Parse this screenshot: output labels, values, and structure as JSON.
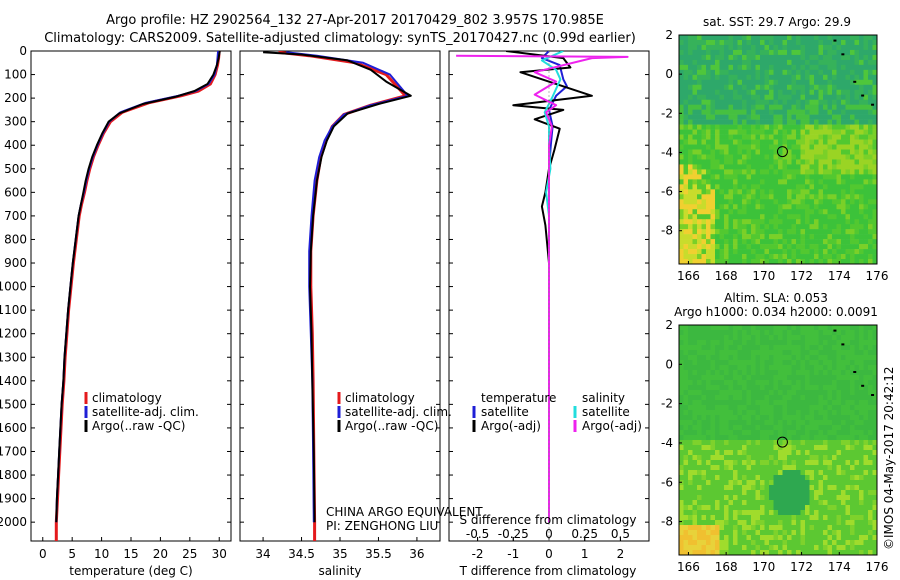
{
  "header": {
    "line1": "Argo profile: HZ 2902564_132 27-Apr-2017 20170429_802 3.957S 170.985E",
    "line2": "Climatology: CARS2009. Satellite-adjusted climatology: synTS_20170427.nc (0.99d earlier)"
  },
  "colors": {
    "climatology": "#e41a1c",
    "satellite": "#1f1fd6",
    "argo": "#000000",
    "sal_satellite": "#22dddd",
    "sal_argo": "#ee22ee"
  },
  "credit": "©IMOS 04-May-2017 20:42:12",
  "chart_data": [
    {
      "id": "temperature",
      "type": "line",
      "xlabel": "temperature (deg C)",
      "ylabel": "",
      "xlim": [
        -2,
        32
      ],
      "ylim": [
        2080,
        0
      ],
      "x_ticks": [
        "0",
        "5",
        "10",
        "15",
        "20",
        "25",
        "30"
      ],
      "y_ticks": [
        "0",
        "100",
        "200",
        "300",
        "400",
        "500",
        "600",
        "700",
        "800",
        "900",
        "1000",
        "1100",
        "1200",
        "1300",
        "1400",
        "1500",
        "1600",
        "1700",
        "1800",
        "1900",
        "2000"
      ],
      "legend": [
        "climatology",
        "satellite-adj. clim.",
        "Argo(..raw -QC)"
      ],
      "series": [
        {
          "name": "climatology",
          "color_key": "climatology",
          "points": [
            [
              30,
              0
            ],
            [
              29.9,
              30
            ],
            [
              29.7,
              60
            ],
            [
              29.3,
              100
            ],
            [
              28.5,
              140
            ],
            [
              26.5,
              170
            ],
            [
              23.5,
              190
            ],
            [
              18,
              220
            ],
            [
              13.5,
              260
            ],
            [
              11.5,
              300
            ],
            [
              10.3,
              350
            ],
            [
              9.4,
              400
            ],
            [
              8.6,
              450
            ],
            [
              8,
              500
            ],
            [
              7.5,
              550
            ],
            [
              7.1,
              600
            ],
            [
              6.6,
              650
            ],
            [
              6.2,
              700
            ],
            [
              5.7,
              800
            ],
            [
              5.2,
              900
            ],
            [
              4.8,
              1000
            ],
            [
              4.4,
              1100
            ],
            [
              4.1,
              1200
            ],
            [
              3.8,
              1300
            ],
            [
              3.6,
              1400
            ],
            [
              3.3,
              1500
            ],
            [
              3.1,
              1600
            ],
            [
              2.9,
              1700
            ],
            [
              2.7,
              1800
            ],
            [
              2.5,
              1900
            ],
            [
              2.3,
              2000
            ],
            [
              2.3,
              2080
            ]
          ]
        },
        {
          "name": "satellite-adj. clim.",
          "color_key": "satellite",
          "points": [
            [
              29.8,
              0
            ],
            [
              29.7,
              30
            ],
            [
              29.6,
              60
            ],
            [
              29.2,
              100
            ],
            [
              28.2,
              140
            ],
            [
              26,
              170
            ],
            [
              23,
              190
            ],
            [
              17.5,
              220
            ],
            [
              13.2,
              260
            ],
            [
              11.3,
              300
            ],
            [
              10.2,
              350
            ],
            [
              9.3,
              400
            ],
            [
              8.5,
              450
            ],
            [
              7.9,
              500
            ],
            [
              7.4,
              550
            ],
            [
              7,
              600
            ],
            [
              6.5,
              650
            ],
            [
              6.1,
              700
            ],
            [
              5.6,
              800
            ],
            [
              5.1,
              900
            ],
            [
              4.7,
              1000
            ],
            [
              4.3,
              1100
            ],
            [
              4,
              1200
            ],
            [
              3.7,
              1300
            ],
            [
              3.5,
              1400
            ],
            [
              3.2,
              1500
            ],
            [
              3,
              1600
            ],
            [
              2.8,
              1700
            ],
            [
              2.6,
              1800
            ],
            [
              2.4,
              1900
            ],
            [
              2.3,
              2000
            ]
          ]
        },
        {
          "name": "Argo(..raw -QC)",
          "color_key": "argo",
          "points": [
            [
              30.1,
              0
            ],
            [
              29.9,
              30
            ],
            [
              29.6,
              60
            ],
            [
              29,
              100
            ],
            [
              28,
              140
            ],
            [
              25.8,
              170
            ],
            [
              22.5,
              195
            ],
            [
              17,
              225
            ],
            [
              13,
              265
            ],
            [
              11.2,
              300
            ],
            [
              10.1,
              350
            ],
            [
              9.2,
              400
            ],
            [
              8.4,
              450
            ],
            [
              7.8,
              500
            ],
            [
              7.3,
              550
            ],
            [
              6.9,
              600
            ],
            [
              6.5,
              650
            ],
            [
              6.1,
              700
            ],
            [
              5.6,
              800
            ],
            [
              5.1,
              900
            ],
            [
              4.7,
              1000
            ],
            [
              4.3,
              1100
            ],
            [
              4,
              1200
            ],
            [
              3.7,
              1300
            ],
            [
              3.5,
              1400
            ],
            [
              3.2,
              1500
            ],
            [
              3,
              1600
            ],
            [
              2.8,
              1700
            ],
            [
              2.6,
              1800
            ],
            [
              2.4,
              1900
            ],
            [
              2.3,
              2000
            ]
          ]
        }
      ]
    },
    {
      "id": "salinity",
      "type": "line",
      "xlabel": "salinity",
      "ylabel": "",
      "xlim": [
        33.7,
        36.3
      ],
      "ylim": [
        2080,
        0
      ],
      "x_ticks": [
        "34",
        "34.5",
        "35",
        "35.5",
        "36"
      ],
      "legend": [
        "climatology",
        "satellite-adj. clim.",
        "Argo(..raw -QC)"
      ],
      "annotation": [
        "CHINA ARGO EQUIVALENT",
        "PI: ZENGHONG LIU"
      ],
      "series": [
        {
          "name": "climatology",
          "color_key": "climatology",
          "points": [
            [
              34.2,
              5
            ],
            [
              34.6,
              20
            ],
            [
              35.2,
              50
            ],
            [
              35.6,
              100
            ],
            [
              35.85,
              190
            ],
            [
              35.4,
              230
            ],
            [
              35.05,
              270
            ],
            [
              34.9,
              320
            ],
            [
              34.82,
              380
            ],
            [
              34.75,
              450
            ],
            [
              34.7,
              550
            ],
            [
              34.65,
              700
            ],
            [
              34.62,
              850
            ],
            [
              34.62,
              1000
            ],
            [
              34.64,
              1200
            ],
            [
              34.65,
              1400
            ],
            [
              34.66,
              1700
            ],
            [
              34.67,
              2000
            ],
            [
              34.67,
              2080
            ]
          ]
        },
        {
          "name": "satellite-adj. clim.",
          "color_key": "satellite",
          "points": [
            [
              34.3,
              5
            ],
            [
              34.7,
              20
            ],
            [
              35.3,
              50
            ],
            [
              35.65,
              100
            ],
            [
              35.88,
              190
            ],
            [
              35.4,
              230
            ],
            [
              35.05,
              270
            ],
            [
              34.9,
              320
            ],
            [
              34.8,
              380
            ],
            [
              34.73,
              450
            ],
            [
              34.67,
              550
            ],
            [
              34.63,
              700
            ],
            [
              34.6,
              850
            ],
            [
              34.6,
              1000
            ],
            [
              34.62,
              1200
            ],
            [
              34.64,
              1400
            ],
            [
              34.65,
              1700
            ],
            [
              34.66,
              2000
            ]
          ]
        },
        {
          "name": "Argo(..raw -QC)",
          "color_key": "argo",
          "points": [
            [
              34.0,
              5
            ],
            [
              34.5,
              15
            ],
            [
              35.1,
              40
            ],
            [
              35.4,
              80
            ],
            [
              35.6,
              130
            ],
            [
              35.92,
              190
            ],
            [
              35.5,
              225
            ],
            [
              35.1,
              265
            ],
            [
              34.92,
              320
            ],
            [
              34.83,
              380
            ],
            [
              34.76,
              450
            ],
            [
              34.7,
              550
            ],
            [
              34.65,
              700
            ],
            [
              34.62,
              850
            ],
            [
              34.61,
              1000
            ],
            [
              34.63,
              1200
            ],
            [
              34.64,
              1400
            ],
            [
              34.66,
              1700
            ],
            [
              34.67,
              2000
            ]
          ]
        }
      ]
    },
    {
      "id": "differences",
      "type": "line",
      "top_xlabel": "S difference from climatology",
      "xlabel": "T difference from climatology",
      "xlim_T": [
        -2.8,
        2.8
      ],
      "xlim_S": [
        -0.7,
        0.7
      ],
      "ylim": [
        2080,
        0
      ],
      "x_ticks_T": [
        "-2",
        "-1",
        "0",
        "1",
        "2"
      ],
      "x_ticks_S": [
        "-0.5",
        "-0.25",
        "0",
        "0.25",
        "0.5"
      ],
      "legend_T": [
        "temperature",
        "satellite",
        "Argo(-adj)"
      ],
      "legend_S": [
        "salinity",
        "satellite",
        "Argo(-adj)"
      ],
      "series": [
        {
          "name": "temperature satellite",
          "axis": "T",
          "color_key": "satellite",
          "points": [
            [
              0,
              0
            ],
            [
              -0.2,
              30
            ],
            [
              0.3,
              60
            ],
            [
              0.4,
              120
            ],
            [
              0.5,
              150
            ],
            [
              0.2,
              190
            ],
            [
              0,
              250
            ],
            [
              0.1,
              320
            ],
            [
              0.05,
              400
            ],
            [
              0,
              500
            ],
            [
              0,
              700
            ],
            [
              0,
              900
            ],
            [
              0,
              1100
            ],
            [
              0,
              1400
            ],
            [
              0,
              1700
            ],
            [
              0,
              2000
            ]
          ]
        },
        {
          "name": "temperature Argo(-adj)",
          "color_key": "argo",
          "axis": "T",
          "points": [
            [
              -1.2,
              0
            ],
            [
              0.4,
              30
            ],
            [
              0.6,
              70
            ],
            [
              -0.8,
              90
            ],
            [
              1.2,
              190
            ],
            [
              -1.0,
              230
            ],
            [
              0.4,
              250
            ],
            [
              -0.4,
              290
            ],
            [
              0.3,
              330
            ],
            [
              0.15,
              420
            ],
            [
              0,
              500
            ],
            [
              -0.1,
              600
            ],
            [
              -0.2,
              660
            ],
            [
              -0.1,
              740
            ],
            [
              -0.05,
              820
            ],
            [
              0,
              900
            ],
            [
              0,
              1100
            ],
            [
              0,
              1400
            ],
            [
              0,
              1700
            ],
            [
              0,
              2000
            ]
          ]
        },
        {
          "name": "salinity satellite",
          "axis": "S",
          "color_key": "sal_satellite",
          "points": [
            [
              0.1,
              0
            ],
            [
              -0.05,
              40
            ],
            [
              0.05,
              80
            ],
            [
              0.08,
              120
            ],
            [
              0.02,
              200
            ],
            [
              -0.03,
              260
            ],
            [
              0,
              320
            ],
            [
              0,
              400
            ],
            [
              0.01,
              500
            ],
            [
              -0.02,
              600
            ],
            [
              0,
              700
            ],
            [
              0,
              900
            ],
            [
              0,
              1100
            ],
            [
              0,
              1400
            ],
            [
              0,
              1700
            ],
            [
              0,
              2000
            ]
          ]
        },
        {
          "name": "salinity Argo(-adj)",
          "axis": "S",
          "color_key": "sal_argo",
          "points": [
            [
              -0.65,
              20
            ],
            [
              0.55,
              25
            ],
            [
              0.3,
              30
            ],
            [
              -0.1,
              90
            ],
            [
              0.05,
              130
            ],
            [
              -0.1,
              185
            ],
            [
              0.05,
              230
            ],
            [
              -0.02,
              260
            ],
            [
              0.02,
              320
            ],
            [
              0,
              400
            ],
            [
              0,
              2000
            ]
          ]
        }
      ]
    },
    {
      "id": "sst_map",
      "type": "heatmap",
      "title": "sat. SST: 29.7 Argo: 29.9",
      "xlim": [
        165.5,
        176
      ],
      "ylim": [
        -9.7,
        2
      ],
      "x_ticks": [
        "166",
        "168",
        "170",
        "172",
        "174",
        "176"
      ],
      "y_ticks": [
        "2",
        "0",
        "-2",
        "-4",
        "-6",
        "-8"
      ],
      "marker": [
        170.985,
        -3.957
      ]
    },
    {
      "id": "sla_map",
      "type": "heatmap",
      "title_line1": "Altim. SLA: 0.053",
      "title_line2": "Argo h1000: 0.034 h2000: 0.0091",
      "xlim": [
        165.5,
        176
      ],
      "ylim": [
        -9.7,
        2
      ],
      "x_ticks": [
        "166",
        "168",
        "170",
        "172",
        "174",
        "176"
      ],
      "y_ticks": [
        "2",
        "0",
        "-2",
        "-4",
        "-6",
        "-8"
      ],
      "marker": [
        170.985,
        -3.957
      ]
    }
  ]
}
